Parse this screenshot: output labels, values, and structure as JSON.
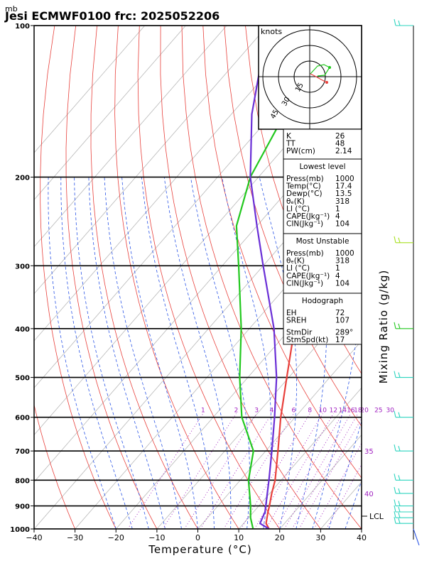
{
  "chart_data": {
    "type": "line",
    "title": "Jesi ECMWF0100  frc: 2025052206",
    "pressure_unit": "mb",
    "xlabel": "Temperature (°C)",
    "right_label": "Mixing Ratio  (g/kg)",
    "xlim": [
      -40,
      40
    ],
    "plim": [
      1000,
      100
    ],
    "x_ticks": [
      "−40",
      "−30",
      "−20",
      "−10",
      "0",
      "10",
      "20",
      "30",
      "40"
    ],
    "p_ticks": [
      "100",
      "200",
      "300",
      "400",
      "500",
      "600",
      "700",
      "800",
      "900",
      "1000"
    ],
    "mixing_ratio_labels": [
      "1",
      "2",
      "3",
      "4",
      "6",
      "8",
      "10",
      "12",
      "14",
      "16",
      "18",
      "20",
      "25",
      "30"
    ],
    "theta_e_labels": [
      "35",
      "40"
    ],
    "lcl_label": "LCL",
    "series": [
      {
        "name": "Temperature",
        "color": "#e8413c",
        "p": [
          1000,
          975,
          925,
          900,
          850,
          800,
          700,
          600,
          500,
          400,
          300,
          250,
          200,
          150,
          100
        ],
        "t": [
          17.4,
          15.5,
          13.5,
          12.6,
          10.5,
          8.5,
          3.0,
          -3.5,
          -10.5,
          -19,
          -32,
          -42,
          -40.5,
          -37,
          -32.5
        ]
      },
      {
        "name": "Dewpoint",
        "color": "#22c81e",
        "p": [
          1000,
          950,
          900,
          800,
          700,
          600,
          500,
          400,
          300,
          250,
          200,
          150,
          100
        ],
        "t": [
          13.5,
          10.5,
          8,
          2,
          -3,
          -13,
          -22,
          -32,
          -46,
          -55,
          -62,
          -67,
          -72
        ]
      },
      {
        "name": "Parcel",
        "color": "#6a2fd6",
        "p": [
          1000,
          975,
          925,
          900,
          800,
          700,
          600,
          500,
          400,
          300,
          250,
          200,
          150,
          100
        ],
        "t": [
          17.4,
          14.0,
          12.8,
          11.7,
          7.0,
          1.5,
          -5.0,
          -13.0,
          -24,
          -40,
          -50,
          -62,
          -75,
          -90
        ]
      }
    ]
  },
  "hodograph": {
    "units": "knots",
    "rings": [
      "15",
      "30",
      "45"
    ]
  },
  "indices": {
    "top": [
      {
        "label": "K",
        "value": "26"
      },
      {
        "label": "TT",
        "value": "48"
      },
      {
        "label": "PW(cm)",
        "value": "2.14"
      }
    ],
    "lowest_level": {
      "header": "Lowest level",
      "rows": [
        {
          "label": "Press(mb)",
          "value": "1000"
        },
        {
          "label": "Temp(°C)",
          "value": "17.4"
        },
        {
          "label": "Dewp(°C)",
          "value": "13.5"
        },
        {
          "label": "θₑ(K)",
          "value": "318"
        },
        {
          "label": "LI (°C)",
          "value": "1"
        },
        {
          "label": "CAPE(Jkg⁻¹)",
          "value": "4"
        },
        {
          "label": "CIN(Jkg⁻¹)",
          "value": "104"
        }
      ]
    },
    "most_unstable": {
      "header": "Most Unstable",
      "rows": [
        {
          "label": "Press(mb)",
          "value": "1000"
        },
        {
          "label": "θₑ(K)",
          "value": "318"
        },
        {
          "label": "LI (°C)",
          "value": "1"
        },
        {
          "label": "CAPE(Jkg⁻¹)",
          "value": "4"
        },
        {
          "label": "CIN(Jkg⁻¹)",
          "value": "104"
        }
      ]
    },
    "hodograph_box": {
      "header": "Hodograph",
      "rows": [
        {
          "label": "EH",
          "value": "72"
        },
        {
          "label": "SREH",
          "value": "107"
        },
        {
          "label": "StmDir",
          "value": "289°"
        },
        {
          "label": "StmSpd(kt)",
          "value": "17"
        }
      ]
    }
  }
}
